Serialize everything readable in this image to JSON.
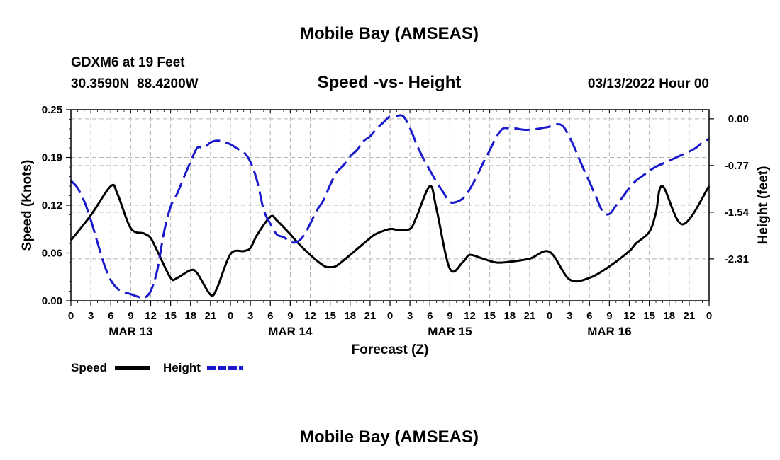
{
  "header": {
    "main_title": "Mobile Bay (AMSEAS)",
    "station": "GDXM6 at 19 Feet",
    "location": "30.3590N  88.4200W",
    "subtitle": "Speed -vs- Height",
    "timestamp": "03/13/2022 Hour 00",
    "footer_title": "Mobile Bay (AMSEAS)"
  },
  "colors": {
    "speed": "#000000",
    "height": "#1a1acc",
    "grid": "#b4b4b4"
  },
  "chart_data": {
    "type": "line",
    "title": "Speed -vs- Height",
    "xlabel": "Forecast (Z)",
    "ylabel": "Speed (Knots)",
    "y2label": "Height (feet)",
    "x_range": [
      0,
      96
    ],
    "ylim": [
      0,
      0.25
    ],
    "y2lim": [
      -3.0,
      0.15
    ],
    "yticks": [
      "0.00",
      "0.06",
      "0.12",
      "0.19",
      "0.25"
    ],
    "yticks_values": [
      0,
      0.0625,
      0.125,
      0.1875,
      0.25
    ],
    "y2ticks": [
      "0.00",
      "-0.77",
      "-1.54",
      "-2.31"
    ],
    "y2ticks_values": [
      0,
      -0.77,
      -1.54,
      -2.31
    ],
    "xticks": [
      "0",
      "3",
      "6",
      "9",
      "12",
      "15",
      "18",
      "21",
      "0",
      "3",
      "6",
      "9",
      "12",
      "15",
      "18",
      "21",
      "0",
      "3",
      "6",
      "9",
      "12",
      "15",
      "18",
      "21",
      "0",
      "3",
      "6",
      "9",
      "12",
      "15",
      "18",
      "21",
      "0"
    ],
    "day_labels": [
      {
        "label": "MAR 13",
        "hour": 9
      },
      {
        "label": "MAR 14",
        "hour": 33
      },
      {
        "label": "MAR 15",
        "hour": 57
      },
      {
        "label": "MAR 16",
        "hour": 81
      }
    ],
    "grid": true,
    "legend": {
      "placement": "bottom-left",
      "speed_label": "Speed",
      "height_label": "Height"
    },
    "series": [
      {
        "name": "Speed",
        "axis": "left",
        "style": "solid",
        "x": [
          0,
          3,
          6,
          7,
          9,
          11,
          12,
          13,
          15,
          16,
          18,
          19,
          21,
          22,
          24,
          26,
          27,
          28,
          30,
          31,
          33,
          34,
          36,
          38,
          39,
          40,
          42,
          45,
          46,
          48,
          49,
          51,
          52,
          54,
          55,
          57,
          59,
          60,
          62,
          64,
          66,
          69,
          72,
          75,
          78,
          81,
          84,
          85,
          87,
          88,
          89,
          92,
          96
        ],
        "y": [
          0.079,
          0.112,
          0.15,
          0.14,
          0.095,
          0.088,
          0.082,
          0.065,
          0.03,
          0.03,
          0.04,
          0.036,
          0.008,
          0.017,
          0.061,
          0.065,
          0.069,
          0.086,
          0.11,
          0.105,
          0.087,
          0.077,
          0.06,
          0.046,
          0.044,
          0.046,
          0.06,
          0.082,
          0.088,
          0.094,
          0.093,
          0.094,
          0.11,
          0.15,
          0.12,
          0.042,
          0.051,
          0.06,
          0.055,
          0.05,
          0.051,
          0.055,
          0.064,
          0.028,
          0.03,
          0.045,
          0.065,
          0.075,
          0.09,
          0.115,
          0.15,
          0.1,
          0.15
        ]
      },
      {
        "name": "Height",
        "axis": "right",
        "style": "dashed",
        "x": [
          0,
          1,
          2,
          3,
          4,
          5,
          6,
          7,
          8,
          9,
          10,
          11,
          12,
          13,
          14,
          15,
          16,
          17,
          18,
          19,
          20,
          21,
          22,
          23,
          24,
          25,
          26,
          27,
          28,
          29,
          30,
          31,
          32,
          33,
          34,
          35,
          36,
          37,
          38,
          39,
          40,
          41,
          42,
          43,
          44,
          45,
          46,
          47,
          48,
          49,
          50,
          51,
          52,
          53,
          54,
          55,
          56,
          57,
          58,
          59,
          60,
          61,
          62,
          63,
          64,
          65,
          66,
          67,
          68,
          69,
          70,
          71,
          72,
          73,
          74,
          75,
          76,
          77,
          78,
          79,
          80,
          81,
          82,
          83,
          84,
          85,
          86,
          87,
          88,
          89,
          90,
          91,
          92,
          93,
          94,
          95,
          96
        ],
        "y": [
          -1.02,
          -1.14,
          -1.36,
          -1.67,
          -2.04,
          -2.4,
          -2.66,
          -2.8,
          -2.86,
          -2.89,
          -2.93,
          -2.95,
          -2.84,
          -2.49,
          -1.87,
          -1.45,
          -1.23,
          -0.96,
          -0.71,
          -0.48,
          -0.48,
          -0.39,
          -0.36,
          -0.38,
          -0.42,
          -0.49,
          -0.55,
          -0.71,
          -1.02,
          -1.5,
          -1.73,
          -1.91,
          -1.95,
          -2.03,
          -2.03,
          -1.93,
          -1.73,
          -1.51,
          -1.34,
          -1.09,
          -0.88,
          -0.77,
          -0.62,
          -0.52,
          -0.37,
          -0.29,
          -0.16,
          -0.06,
          0.04,
          0.05,
          0.04,
          -0.15,
          -0.42,
          -0.65,
          -0.85,
          -1.04,
          -1.21,
          -1.37,
          -1.37,
          -1.31,
          -1.16,
          -0.96,
          -0.73,
          -0.52,
          -0.3,
          -0.16,
          -0.16,
          -0.16,
          -0.18,
          -0.18,
          -0.17,
          -0.15,
          -0.13,
          -0.09,
          -0.12,
          -0.3,
          -0.54,
          -0.8,
          -1.04,
          -1.29,
          -1.53,
          -1.57,
          -1.43,
          -1.29,
          -1.14,
          -1.02,
          -0.94,
          -0.86,
          -0.79,
          -0.74,
          -0.69,
          -0.64,
          -0.59,
          -0.54,
          -0.48,
          -0.39,
          -0.33
        ]
      }
    ]
  }
}
